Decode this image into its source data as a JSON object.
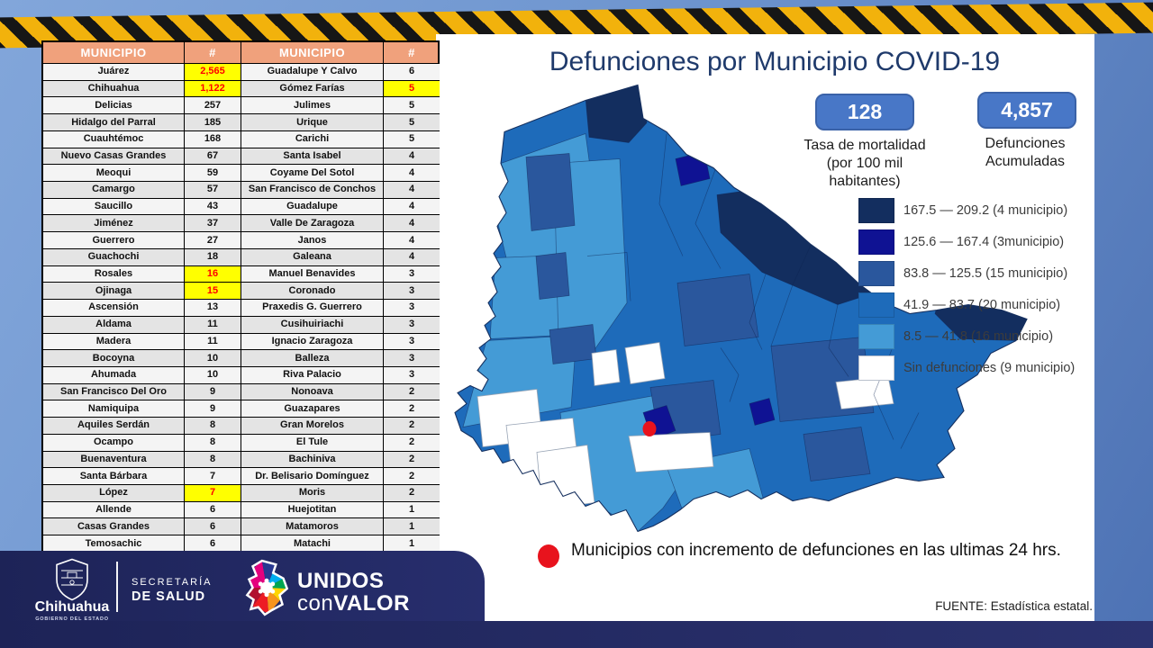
{
  "title": "Defunciones por Municipio COVID-19",
  "stats": [
    {
      "value": "128",
      "label_lines": [
        "Tasa de mortalidad",
        "(por 100 mil habitantes)"
      ]
    },
    {
      "value": "4,857",
      "label_lines": [
        "Defunciones",
        "Acumuladas"
      ]
    }
  ],
  "legend": {
    "items": [
      {
        "label": "167.5 — 209.2 (4 municipio)",
        "color": "#132e5f"
      },
      {
        "label": "125.6 — 167.4 (3municipio)",
        "color": "#0f1293"
      },
      {
        "label": "83.8 — 125.5 (15 municipio)",
        "color": "#2a579d"
      },
      {
        "label": "41.9 — 83.7 (20 municipio)",
        "color": "#1e6bba"
      },
      {
        "label": "8.5 — 41.8 (16 municipio)",
        "color": "#449bd6"
      },
      {
        "label": "Sin defunciones (9 municipio)",
        "color": "#ffffff"
      }
    ]
  },
  "note": {
    "text": "Municipios con incremento de defunciones en las ultimas 24 hrs.",
    "marker_color": "#e8131d"
  },
  "source": "FUENTE:  Estadística estatal.",
  "colors": {
    "header_bg": "#f0a17c",
    "highlight_bg": "#ffff00",
    "highlight_text": "#ff0000"
  },
  "table": {
    "headers": [
      "MUNICIPIO",
      "#",
      "MUNICIPIO",
      "#"
    ],
    "rows": [
      [
        "Juárez",
        "2,565",
        true,
        "Guadalupe Y Calvo",
        "6",
        false
      ],
      [
        "Chihuahua",
        "1,122",
        true,
        "Gómez Farías",
        "5",
        true
      ],
      [
        "Delicias",
        "257",
        false,
        "Julimes",
        "5",
        false
      ],
      [
        "Hidalgo del Parral",
        "185",
        false,
        "Urique",
        "5",
        false
      ],
      [
        "Cuauhtémoc",
        "168",
        false,
        "Carichi",
        "5",
        false
      ],
      [
        "Nuevo Casas Grandes",
        "67",
        false,
        "Santa Isabel",
        "4",
        false
      ],
      [
        "Meoqui",
        "59",
        false,
        "Coyame Del Sotol",
        "4",
        false
      ],
      [
        "Camargo",
        "57",
        false,
        "San Francisco de Conchos",
        "4",
        false
      ],
      [
        "Saucillo",
        "43",
        false,
        "Guadalupe",
        "4",
        false
      ],
      [
        "Jiménez",
        "37",
        false,
        "Valle De Zaragoza",
        "4",
        false
      ],
      [
        "Guerrero",
        "27",
        false,
        "Janos",
        "4",
        false
      ],
      [
        "Guachochi",
        "18",
        false,
        "Galeana",
        "4",
        false
      ],
      [
        "Rosales",
        "16",
        true,
        "Manuel Benavides",
        "3",
        false
      ],
      [
        "Ojinaga",
        "15",
        true,
        "Coronado",
        "3",
        false
      ],
      [
        "Ascensión",
        "13",
        false,
        "Praxedis G. Guerrero",
        "3",
        false
      ],
      [
        "Aldama",
        "11",
        false,
        "Cusihuiriachi",
        "3",
        false
      ],
      [
        "Madera",
        "11",
        false,
        "Ignacio Zaragoza",
        "3",
        false
      ],
      [
        "Bocoyna",
        "10",
        false,
        "Balleza",
        "3",
        false
      ],
      [
        "Ahumada",
        "10",
        false,
        "Riva Palacio",
        "3",
        false
      ],
      [
        "San Francisco Del Oro",
        "9",
        false,
        "Nonoava",
        "2",
        false
      ],
      [
        "Namiquipa",
        "9",
        false,
        "Guazapares",
        "2",
        false
      ],
      [
        "Aquiles Serdán",
        "8",
        false,
        "Gran Morelos",
        "2",
        false
      ],
      [
        "Ocampo",
        "8",
        false,
        "El Tule",
        "2",
        false
      ],
      [
        "Buenaventura",
        "8",
        false,
        "Bachiniva",
        "2",
        false
      ],
      [
        "Santa Bárbara",
        "7",
        false,
        "Dr. Belisario Domínguez",
        "2",
        false
      ],
      [
        "López",
        "7",
        true,
        "Moris",
        "2",
        false
      ],
      [
        "Allende",
        "6",
        false,
        "Huejotitan",
        "1",
        false
      ],
      [
        "Casas Grandes",
        "6",
        false,
        "Matamoros",
        "1",
        false
      ],
      [
        "Temosachic",
        "6",
        false,
        "Matachi",
        "1",
        false
      ]
    ]
  },
  "footer": {
    "brand": "Chihuahua",
    "brand_sub": "GOBIERNO DEL ESTADO",
    "dept_line1": "SECRETARÍA",
    "dept_line2": "DE SALUD",
    "slogan_line1": "UNIDOS",
    "slogan_con": "con",
    "slogan_valor": "VALOR"
  },
  "chart_data": [
    {
      "type": "table",
      "title": "Defunciones por Municipio COVID-19",
      "columns": [
        "MUNICIPIO",
        "#"
      ],
      "rows": [
        [
          "Juárez",
          2565
        ],
        [
          "Chihuahua",
          1122
        ],
        [
          "Delicias",
          257
        ],
        [
          "Hidalgo del Parral",
          185
        ],
        [
          "Cuauhtémoc",
          168
        ],
        [
          "Nuevo Casas Grandes",
          67
        ],
        [
          "Meoqui",
          59
        ],
        [
          "Camargo",
          57
        ],
        [
          "Saucillo",
          43
        ],
        [
          "Jiménez",
          37
        ],
        [
          "Guerrero",
          27
        ],
        [
          "Guachochi",
          18
        ],
        [
          "Rosales",
          16
        ],
        [
          "Ojinaga",
          15
        ],
        [
          "Ascensión",
          13
        ],
        [
          "Aldama",
          11
        ],
        [
          "Madera",
          11
        ],
        [
          "Bocoyna",
          10
        ],
        [
          "Ahumada",
          10
        ],
        [
          "San Francisco Del Oro",
          9
        ],
        [
          "Namiquipa",
          9
        ],
        [
          "Aquiles Serdán",
          8
        ],
        [
          "Ocampo",
          8
        ],
        [
          "Buenaventura",
          8
        ],
        [
          "Santa Bárbara",
          7
        ],
        [
          "López",
          7
        ],
        [
          "Allende",
          6
        ],
        [
          "Casas Grandes",
          6
        ],
        [
          "Temosachic",
          6
        ],
        [
          "Guadalupe Y Calvo",
          6
        ],
        [
          "Gómez Farías",
          5
        ],
        [
          "Julimes",
          5
        ],
        [
          "Urique",
          5
        ],
        [
          "Carichi",
          5
        ],
        [
          "Santa Isabel",
          4
        ],
        [
          "Coyame Del Sotol",
          4
        ],
        [
          "San Francisco de Conchos",
          4
        ],
        [
          "Guadalupe",
          4
        ],
        [
          "Valle De Zaragoza",
          4
        ],
        [
          "Janos",
          4
        ],
        [
          "Galeana",
          4
        ],
        [
          "Manuel Benavides",
          3
        ],
        [
          "Coronado",
          3
        ],
        [
          "Praxedis G. Guerrero",
          3
        ],
        [
          "Cusihuiriachi",
          3
        ],
        [
          "Ignacio Zaragoza",
          3
        ],
        [
          "Balleza",
          3
        ],
        [
          "Riva Palacio",
          3
        ],
        [
          "Nonoava",
          2
        ],
        [
          "Guazapares",
          2
        ],
        [
          "Gran Morelos",
          2
        ],
        [
          "El Tule",
          2
        ],
        [
          "Bachiniva",
          2
        ],
        [
          "Dr. Belisario Domínguez",
          2
        ],
        [
          "Moris",
          2
        ],
        [
          "Huejotitan",
          1
        ],
        [
          "Matamoros",
          1
        ],
        [
          "Matachi",
          1
        ]
      ],
      "highlighted_increment_24h": [
        "Juárez",
        "Chihuahua",
        "Gómez Farías",
        "Rosales",
        "Ojinaga",
        "López"
      ],
      "totals": {
        "tasa_mortalidad_por_100mil": 128,
        "defunciones_acumuladas": 4857
      }
    },
    {
      "type": "heatmap",
      "subtype": "choropleth",
      "title": "Tasa de mortalidad por municipio (por 100 mil habitantes)",
      "legend_position": "right",
      "bins": [
        {
          "range": [
            167.5,
            209.2
          ],
          "municipios": 4,
          "color": "#132e5f"
        },
        {
          "range": [
            125.6,
            167.4
          ],
          "municipios": 3,
          "color": "#0f1293"
        },
        {
          "range": [
            83.8,
            125.5
          ],
          "municipios": 15,
          "color": "#2a579d"
        },
        {
          "range": [
            41.9,
            83.7
          ],
          "municipios": 20,
          "color": "#1e6bba"
        },
        {
          "range": [
            8.5,
            41.8
          ],
          "municipios": 16,
          "color": "#449bd6"
        },
        {
          "label": "Sin defunciones",
          "municipios": 9,
          "color": "#ffffff"
        }
      ]
    }
  ]
}
